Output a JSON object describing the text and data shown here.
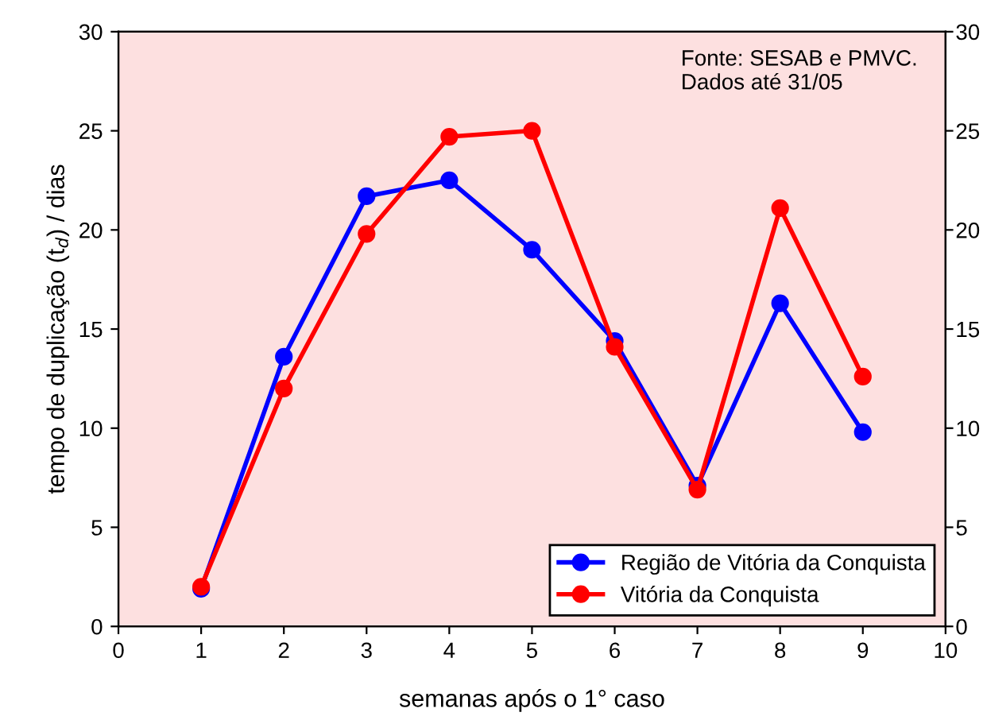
{
  "chart_data": {
    "type": "line",
    "xlabel": "semanas após o 1° caso",
    "ylabel": "tempo de duplicação (t$_{d}$) / dias",
    "x": [
      1,
      2,
      3,
      4,
      5,
      6,
      7,
      8,
      9
    ],
    "series": [
      {
        "name": "Região de Vitória da Conquista",
        "color": "#0000ff",
        "values": [
          1.9,
          13.6,
          21.7,
          22.5,
          19.0,
          14.4,
          7.1,
          16.3,
          9.8
        ]
      },
      {
        "name": "Vitória da Conquista",
        "color": "#ff0000",
        "values": [
          2.0,
          12.0,
          19.8,
          24.7,
          25.0,
          14.1,
          6.9,
          21.1,
          12.6
        ]
      }
    ],
    "xlim": [
      0,
      10
    ],
    "xticks": [
      0,
      1,
      2,
      3,
      4,
      5,
      6,
      7,
      8,
      9,
      10
    ],
    "ylim": [
      0,
      30
    ],
    "yticks": [
      0,
      5,
      10,
      15,
      20,
      25,
      30
    ],
    "y2lim": [
      0,
      30
    ],
    "y2ticks": [
      0,
      5,
      10,
      15,
      20,
      25,
      30
    ],
    "annotations": [
      "Fonte: SESAB e PMVC.\nDados até 31/05"
    ],
    "legend": "bottom right",
    "marker": "circle",
    "line_style": "solid",
    "grid": false
  }
}
